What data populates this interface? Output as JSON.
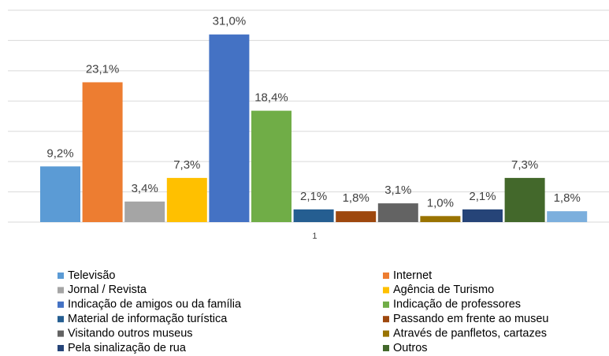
{
  "chart_data": {
    "type": "bar",
    "categories": [
      "1"
    ],
    "ylim": [
      0,
      35
    ],
    "yticks": [
      0,
      5,
      10,
      15,
      20,
      25,
      30,
      35
    ],
    "grid": true,
    "legend": "bottom",
    "series": [
      {
        "name": "Televisão",
        "color": "#5b9bd5",
        "values": [
          9.2
        ],
        "value_labels": [
          "9,2%"
        ]
      },
      {
        "name": "Internet",
        "color": "#ed7d31",
        "values": [
          23.1
        ],
        "value_labels": [
          "23,1%"
        ]
      },
      {
        "name": "Jornal / Revista",
        "color": "#a5a5a5",
        "values": [
          3.4
        ],
        "value_labels": [
          "3,4%"
        ]
      },
      {
        "name": "Agência de Turismo",
        "color": "#ffc000",
        "values": [
          7.3
        ],
        "value_labels": [
          "7,3%"
        ]
      },
      {
        "name": "Indicação de amigos ou da família",
        "color": "#4472c4",
        "values": [
          31.0
        ],
        "value_labels": [
          "31,0%"
        ]
      },
      {
        "name": "Indicação de professores",
        "color": "#70ad47",
        "values": [
          18.4
        ],
        "value_labels": [
          "18,4%"
        ]
      },
      {
        "name": "Material de informação turística",
        "color": "#255e91",
        "values": [
          2.1
        ],
        "value_labels": [
          "2,1%"
        ]
      },
      {
        "name": "Passando em frente ao museu",
        "color": "#9e480e",
        "values": [
          1.8
        ],
        "value_labels": [
          "1,8%"
        ]
      },
      {
        "name": "Visitando outros museus",
        "color": "#636363",
        "values": [
          3.1
        ],
        "value_labels": [
          "3,1%"
        ]
      },
      {
        "name": "Através de panfletos, cartazes",
        "color": "#997300",
        "values": [
          1.0
        ],
        "value_labels": [
          "1,0%"
        ]
      },
      {
        "name": "Pela sinalização de rua",
        "color": "#264478",
        "values": [
          2.1
        ],
        "value_labels": [
          "2,1%"
        ]
      },
      {
        "name": "Outros",
        "color": "#43682b",
        "values": [
          7.3
        ],
        "value_labels": [
          "7,3%"
        ]
      },
      {
        "color": "#7cafdd",
        "values": [
          1.8
        ],
        "value_labels": [
          "1,8%"
        ]
      }
    ]
  }
}
